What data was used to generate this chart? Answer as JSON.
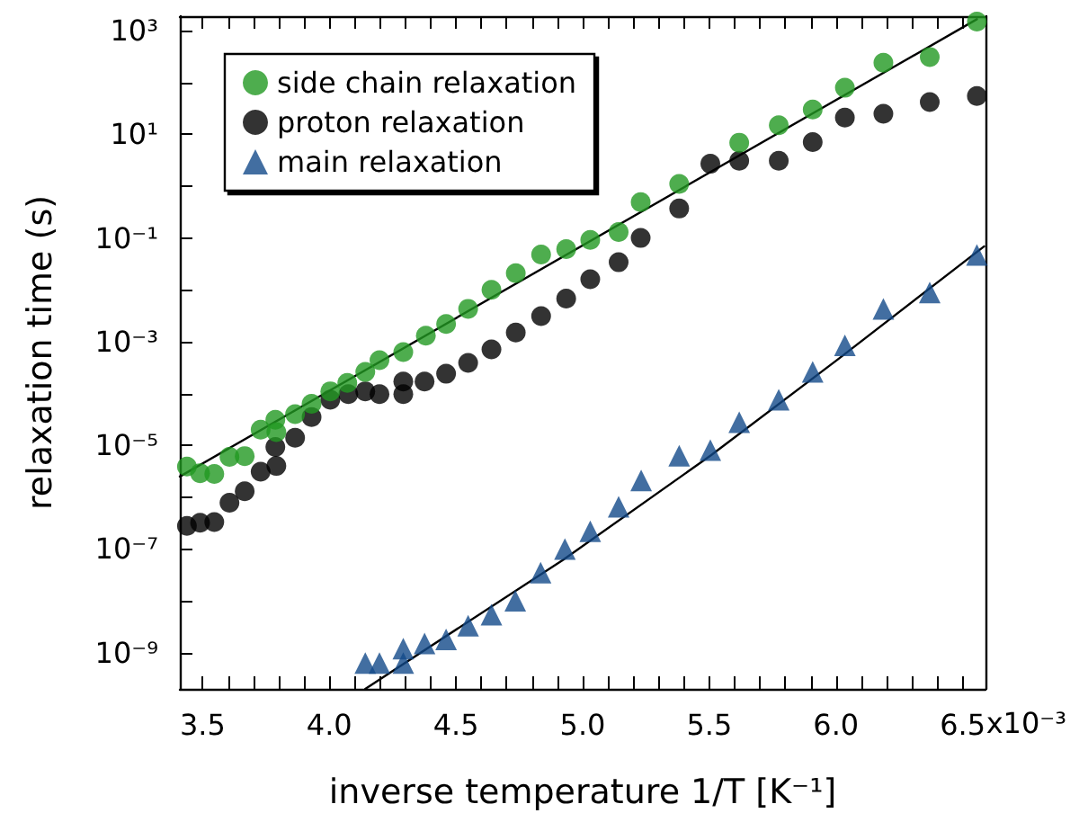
{
  "chart_data": {
    "type": "scatter",
    "xlabel": "inverse temperature 1/T [K⁻¹]",
    "ylabel": "relaxation time (s)",
    "log": "y",
    "grid": false,
    "legend": "top left",
    "xlim": [
      3.41,
      6.59
    ],
    "xticks": [
      3.5,
      {
        "value": 3.6,
        "label": null
      },
      {
        "value": 3.7,
        "label": null
      },
      {
        "value": 3.8,
        "label": null
      },
      {
        "value": 3.9,
        "label": null
      },
      {
        "value": 4.0,
        "label": "4.0"
      },
      {
        "value": 4.1,
        "label": null
      },
      {
        "value": 4.2,
        "label": null
      },
      {
        "value": 4.3,
        "label": null
      },
      {
        "value": 4.4,
        "label": null
      },
      4.5,
      {
        "value": 4.6,
        "label": null
      },
      {
        "value": 4.7,
        "label": null
      },
      {
        "value": 4.8,
        "label": null
      },
      {
        "value": 4.9,
        "label": null
      },
      {
        "value": 5.0,
        "label": "5.0"
      },
      {
        "value": 5.1,
        "label": null
      },
      {
        "value": 5.2,
        "label": null
      },
      {
        "value": 5.3,
        "label": null
      },
      {
        "value": 5.4,
        "label": null
      },
      5.5,
      {
        "value": 5.6,
        "label": null
      },
      {
        "value": 5.7,
        "label": null
      },
      {
        "value": 5.8,
        "label": null
      },
      {
        "value": 5.9,
        "label": null
      },
      {
        "value": 6.0,
        "label": "6.0"
      },
      {
        "value": 6.1,
        "label": null
      },
      {
        "value": 6.2,
        "label": null
      },
      {
        "value": 6.3,
        "label": null
      },
      {
        "value": 6.4,
        "label": null
      },
      6.5
    ],
    "annotations": [
      "x10⁻³"
    ],
    "ylim": [
      2e-10,
      1900
    ],
    "yticks": [
      {
        "value": 1e-09,
        "label": "10⁻⁹"
      },
      {
        "value": 1e-08,
        "label": null
      },
      {
        "value": 1e-07,
        "label": "10⁻⁷"
      },
      {
        "value": 1e-06,
        "label": null
      },
      {
        "value": 1e-05,
        "label": "10⁻⁵"
      },
      {
        "value": 0.0001,
        "label": null
      },
      {
        "value": 0.001,
        "label": "10⁻³"
      },
      {
        "value": 0.01,
        "label": null
      },
      {
        "value": 0.1,
        "label": "10⁻¹"
      },
      {
        "value": 1,
        "label": null
      },
      {
        "value": 10,
        "label": "10¹"
      },
      {
        "value": 100,
        "label": null
      },
      {
        "value": 1000,
        "label": "10³"
      }
    ],
    "series": [
      {
        "name": "side chain relaxation",
        "type": "scatter",
        "marker": "circle",
        "color": "#229922",
        "x": [
          3.438,
          3.49,
          3.546,
          3.606,
          3.666,
          3.729,
          3.787,
          3.791,
          3.865,
          3.93,
          4.004,
          4.071,
          4.142,
          4.198,
          4.292,
          4.381,
          4.461,
          4.548,
          4.64,
          4.736,
          4.836,
          4.935,
          5.03,
          5.142,
          5.229,
          5.381,
          5.618,
          5.774,
          5.908,
          6.035,
          6.187,
          6.37,
          6.556
        ],
        "values": [
          3.9e-06,
          2.9e-06,
          2.8e-06,
          6e-06,
          6.2e-06,
          2e-05,
          3.1e-05,
          1.8e-05,
          4e-05,
          6.3e-05,
          0.00011,
          0.00016,
          0.00026,
          0.00044,
          0.00063,
          0.0013,
          0.0022,
          0.0043,
          0.01,
          0.021,
          0.048,
          0.061,
          0.092,
          0.13,
          0.49,
          1.1,
          6.9,
          15,
          30,
          79,
          240,
          310,
          1500
        ]
      },
      {
        "name": "proton relaxation",
        "type": "scatter",
        "marker": "circle",
        "color": "#000000",
        "x": [
          3.438,
          3.49,
          3.546,
          3.606,
          3.666,
          3.729,
          3.791,
          3.787,
          3.865,
          3.93,
          4.004,
          4.075,
          4.142,
          4.198,
          4.292,
          4.292,
          4.376,
          4.461,
          4.548,
          4.64,
          4.736,
          4.836,
          4.935,
          5.03,
          5.142,
          5.229,
          5.381,
          5.504,
          5.618,
          5.774,
          5.908,
          6.035,
          6.187,
          6.37,
          6.556
        ],
        "values": [
          2.8e-07,
          3.2e-07,
          3.3e-07,
          7.8e-07,
          1.3e-06,
          3.1e-06,
          4e-06,
          9.3e-06,
          1.4e-05,
          3.5e-05,
          7.6e-05,
          9.7e-05,
          0.00011,
          9.7e-05,
          9.7e-05,
          0.00017,
          0.00017,
          0.00024,
          0.00039,
          0.00071,
          0.0015,
          0.0031,
          0.0068,
          0.016,
          0.034,
          0.1,
          0.37,
          2.7,
          3.1,
          3.1,
          7.1,
          21,
          25,
          42,
          55
        ]
      },
      {
        "name": "main relaxation",
        "type": "scatter",
        "marker": "triangle",
        "color": "#134a8a",
        "x": [
          4.142,
          4.198,
          4.292,
          4.292,
          4.376,
          4.461,
          4.548,
          4.64,
          4.734,
          4.834,
          4.93,
          5.03,
          5.142,
          5.231,
          5.381,
          5.504,
          5.618,
          5.774,
          5.908,
          6.035,
          6.187,
          6.37,
          6.556
        ],
        "values": [
          6.3e-10,
          6.3e-10,
          1.2e-09,
          6.3e-10,
          1.5e-09,
          1.8e-09,
          3.3e-09,
          5.4e-09,
          1e-08,
          3.5e-08,
          1e-07,
          2.2e-07,
          6.5e-07,
          2.1e-06,
          6.3e-06,
          8.1e-06,
          2.8e-05,
          7.6e-05,
          0.00026,
          0.00085,
          0.0043,
          0.0089,
          0.047
        ]
      },
      {
        "type": "line",
        "marker": "none",
        "line_style": "solid",
        "color": "#000000",
        "x": [
          3.41,
          6.556
        ],
        "values": [
          2.5e-06,
          1660
        ]
      },
      {
        "type": "line",
        "marker": "none",
        "line_style": "solid",
        "color": "#000000",
        "x": [
          4.142,
          4.923,
          5.504,
          6.006,
          6.585
        ],
        "values": [
          2e-10,
          6.2e-08,
          6.3e-06,
          0.00045,
          0.069
        ]
      }
    ]
  }
}
